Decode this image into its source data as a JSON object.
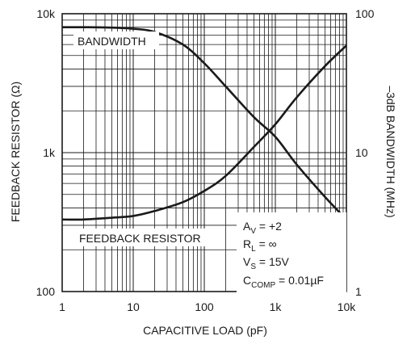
{
  "chart_data": {
    "type": "line",
    "x_scale": "log",
    "xlim": [
      1,
      10000
    ],
    "ylim_left": [
      100,
      10000
    ],
    "ylim_right": [
      1,
      100
    ],
    "left_scale": "log",
    "right_scale": "log",
    "grid": true,
    "xlabel": "CAPACITIVE LOAD (pF)",
    "ylabel_left": "FEEDBACK RESISTOR (Ω)",
    "ylabel_right": "–3dB BANDWIDTH (MHz)",
    "x_ticks": [
      "1",
      "10",
      "100",
      "1k",
      "10k"
    ],
    "left_ticks": [
      "100",
      "1k",
      "10k"
    ],
    "right_ticks": [
      "1",
      "10",
      "100"
    ],
    "series": [
      {
        "name": "BANDWIDTH",
        "axis": "right",
        "x": [
          1,
          2,
          5,
          10,
          20,
          50,
          100,
          200,
          500,
          1000,
          2000,
          5000,
          10000
        ],
        "y": [
          80,
          80,
          79.5,
          78,
          74,
          60,
          44,
          30,
          18,
          13,
          8.2,
          4.8,
          3.3
        ]
      },
      {
        "name": "FEEDBACK RESISTOR",
        "axis": "left",
        "x": [
          1,
          2,
          5,
          10,
          20,
          50,
          100,
          200,
          500,
          1000,
          2000,
          5000,
          10000
        ],
        "y": [
          330,
          330,
          340,
          350,
          380,
          440,
          530,
          680,
          1100,
          1600,
          2500,
          4200,
          5900
        ]
      }
    ],
    "annotations": {
      "av": {
        "main": "A",
        "sub": "V",
        "rest": " = +2"
      },
      "rl": {
        "main": "R",
        "sub": "L",
        "rest": " = ∞"
      },
      "vs": {
        "main": "V",
        "sub": "S",
        "rest": " = 15V"
      },
      "ccomp": {
        "main": "C",
        "sub": "COMP",
        "rest": " = 0.01µF"
      }
    }
  }
}
